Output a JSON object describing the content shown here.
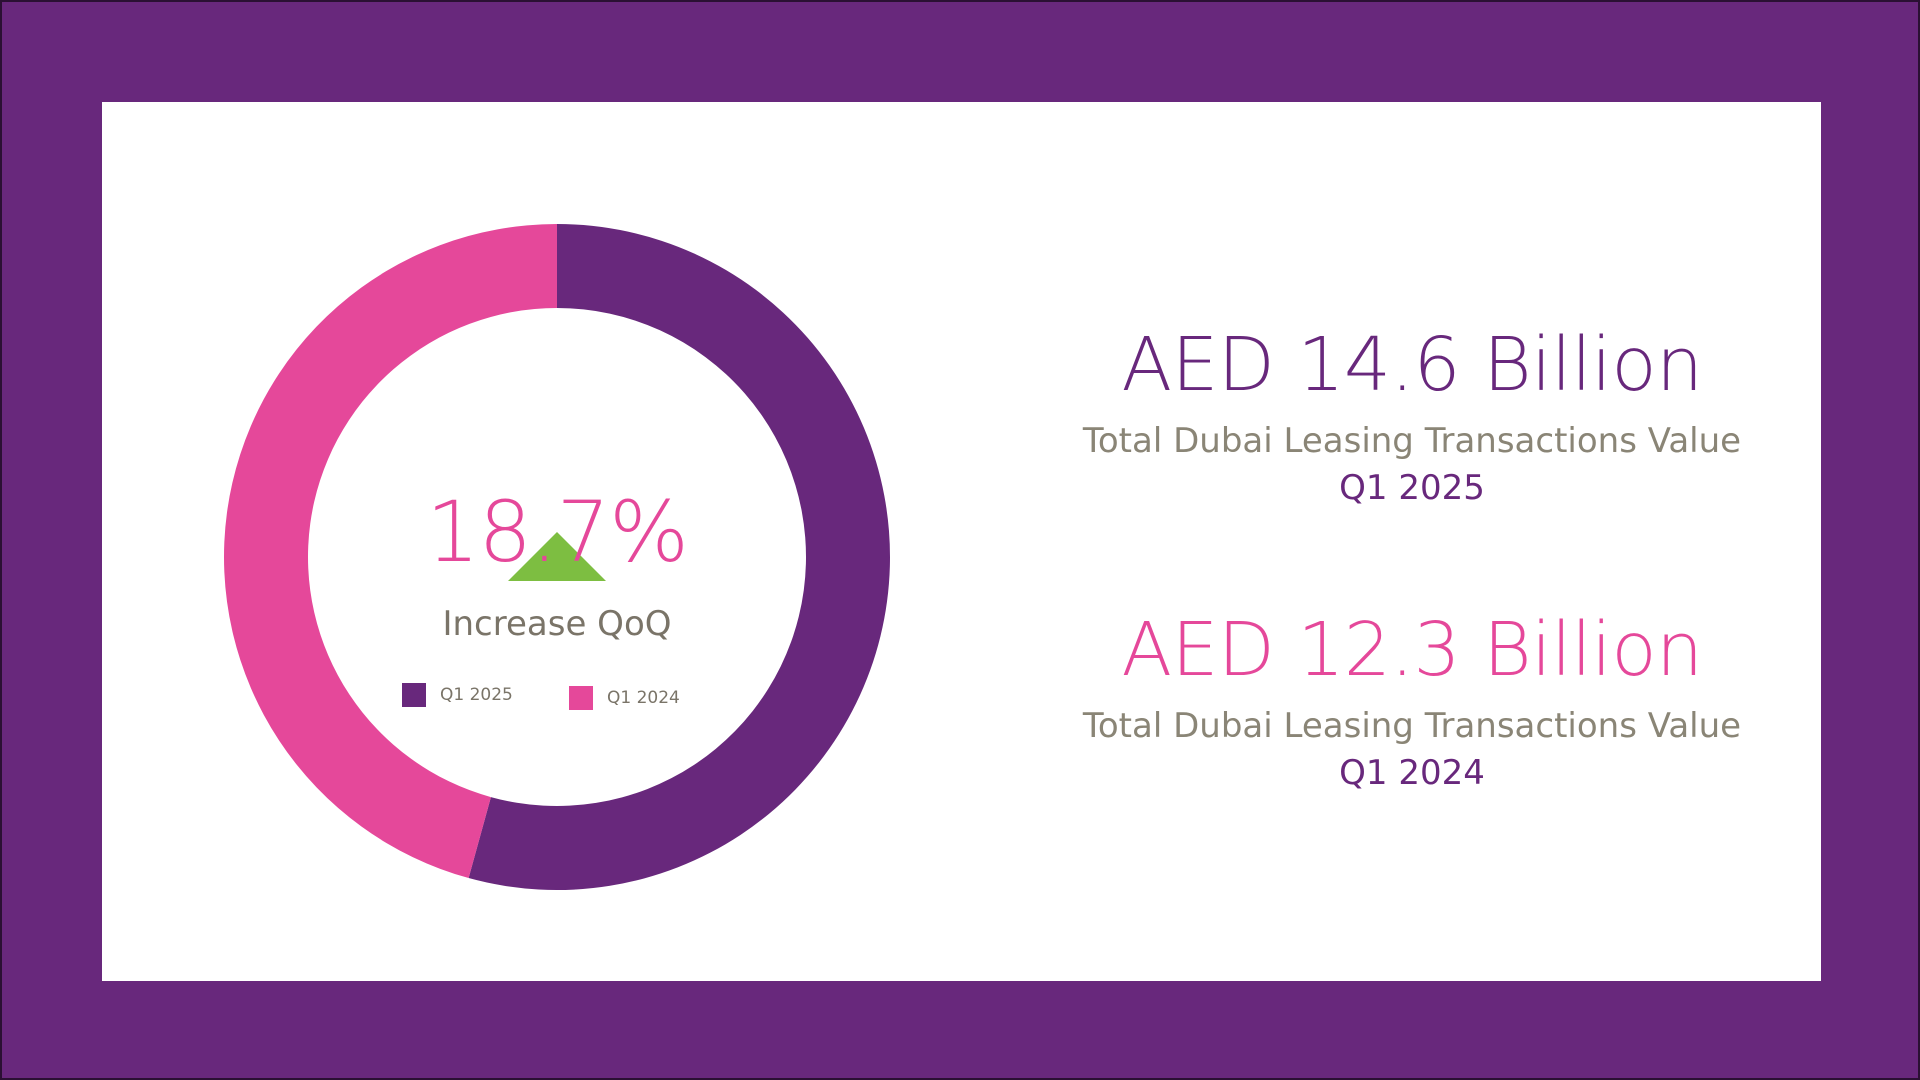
{
  "colors": {
    "frame": "#68287c",
    "primary": "#68287c",
    "accent": "#e5489a",
    "up_arrow": "#7dbe41",
    "muted_text": "#8a8576"
  },
  "kpi": {
    "change_value": "18.7%",
    "change_label": "Increase QoQ",
    "arrow_icon": "triangle-up-icon"
  },
  "stats": [
    {
      "value": "AED 14.6 Billion",
      "description": "Total Dubai Leasing Transactions Value",
      "period": "Q1 2025"
    },
    {
      "value": "AED 12.3 Billion",
      "description": "Total Dubai Leasing Transactions Value",
      "period": "Q1 2024"
    }
  ],
  "chart_data": {
    "type": "pie",
    "donut": true,
    "unit": "AED Billion",
    "categories": [
      "Q1 2025",
      "Q1 2024"
    ],
    "values": [
      14.6,
      12.3
    ],
    "colors": [
      "#68287c",
      "#e5489a"
    ],
    "start_angle_deg": 0,
    "direction": "clockwise",
    "legend_position": "inside-center"
  }
}
